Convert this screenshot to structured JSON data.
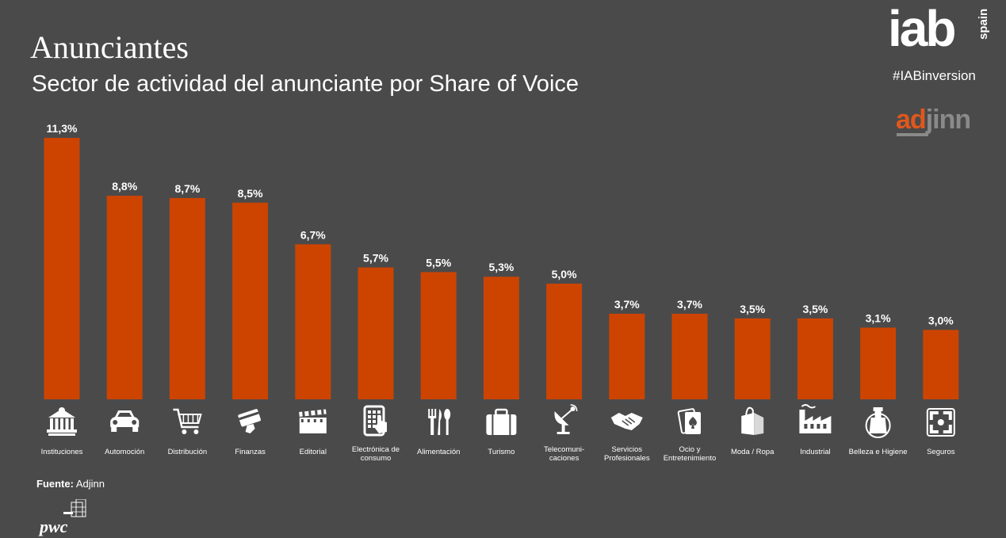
{
  "header": {
    "title": "Anunciantes",
    "subtitle": "Sector de actividad del anunciante por Share of Voice",
    "hashtag": "#IABinversion",
    "iab_logo_text": "iab",
    "iab_logo_suffix": "spain",
    "adjinn_logo_ad": "ad",
    "adjinn_logo_jinn": "jinn",
    "pwc_logo_text": "pwc"
  },
  "footer": {
    "source_label": "Fuente:",
    "source_value": "Adjinn"
  },
  "colors": {
    "background": "#4a4a4b",
    "bar": "#cc4400",
    "text": "#ffffff",
    "accent": "#e0571c"
  },
  "chart_data": {
    "type": "bar",
    "title": "",
    "xlabel": "",
    "ylabel": "",
    "ylim": [
      0,
      11.3
    ],
    "categories": [
      [
        "Instituciones"
      ],
      [
        "Automoción"
      ],
      [
        "Distribución"
      ],
      [
        "Finanzas"
      ],
      [
        "Editorial"
      ],
      [
        "Electrónica de",
        "consumo"
      ],
      [
        "Alimentación"
      ],
      [
        "Turismo"
      ],
      [
        "Telecomuni-",
        "caciones"
      ],
      [
        "Servicios",
        "Profesionales"
      ],
      [
        "Ocio y",
        "Entretenimiento"
      ],
      [
        "Moda / Ropa"
      ],
      [
        "Industrial"
      ],
      [
        "Belleza e Higiene"
      ],
      [
        "Seguros"
      ]
    ],
    "values": [
      11.3,
      8.8,
      8.7,
      8.5,
      6.7,
      5.7,
      5.5,
      5.3,
      5.0,
      3.7,
      3.7,
      3.5,
      3.5,
      3.1,
      3.0
    ],
    "value_labels": [
      "11,3%",
      "8,8%",
      "8,7%",
      "8,5%",
      "6,7%",
      "5,7%",
      "5,5%",
      "5,3%",
      "5,0%",
      "3,7%",
      "3,7%",
      "3,5%",
      "3,5%",
      "3,1%",
      "3,0%"
    ],
    "icons": [
      "institution-icon",
      "car-icon",
      "shopping-cart-icon",
      "credit-card-icon",
      "clapperboard-icon",
      "tablet-touch-icon",
      "cutlery-icon",
      "suitcase-icon",
      "satellite-dish-icon",
      "handshake-icon",
      "playing-cards-icon",
      "shopping-bag-icon",
      "factory-icon",
      "lotion-icon",
      "shield-icon"
    ],
    "grid": false,
    "legend": "none"
  }
}
